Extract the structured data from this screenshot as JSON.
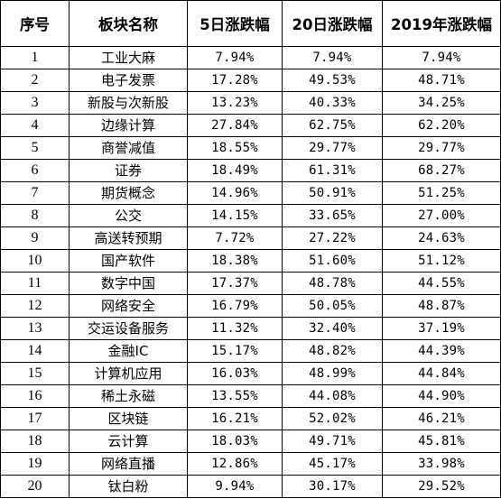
{
  "table": {
    "headers": [
      "序号",
      "板块名称",
      "5日涨跌幅",
      "20日涨跌幅",
      "2019年涨跌幅"
    ],
    "rows": [
      [
        "1",
        "工业大麻",
        "7.94%",
        "7.94%",
        "7.94%"
      ],
      [
        "2",
        "电子发票",
        "17.28%",
        "49.53%",
        "48.71%"
      ],
      [
        "3",
        "新股与次新股",
        "13.23%",
        "40.33%",
        "34.25%"
      ],
      [
        "4",
        "边缘计算",
        "27.84%",
        "62.75%",
        "62.20%"
      ],
      [
        "5",
        "商誉减值",
        "18.55%",
        "29.77%",
        "29.77%"
      ],
      [
        "6",
        "证券",
        "18.49%",
        "61.31%",
        "68.27%"
      ],
      [
        "7",
        "期货概念",
        "14.96%",
        "50.91%",
        "51.25%"
      ],
      [
        "8",
        "公交",
        "14.15%",
        "33.65%",
        "27.00%"
      ],
      [
        "9",
        "高送转预期",
        "7.72%",
        "27.22%",
        "24.63%"
      ],
      [
        "10",
        "国产软件",
        "18.38%",
        "51.60%",
        "51.12%"
      ],
      [
        "11",
        "数字中国",
        "17.37%",
        "48.78%",
        "44.55%"
      ],
      [
        "12",
        "网络安全",
        "16.79%",
        "50.05%",
        "48.87%"
      ],
      [
        "13",
        "交运设备服务",
        "11.32%",
        "32.40%",
        "37.19%"
      ],
      [
        "14",
        "金融IC",
        "15.17%",
        "48.82%",
        "44.39%"
      ],
      [
        "15",
        "计算机应用",
        "16.03%",
        "48.99%",
        "44.84%"
      ],
      [
        "16",
        "稀土永磁",
        "13.55%",
        "44.08%",
        "44.90%"
      ],
      [
        "17",
        "区块链",
        "16.21%",
        "52.02%",
        "46.21%"
      ],
      [
        "18",
        "云计算",
        "18.03%",
        "49.71%",
        "45.81%"
      ],
      [
        "19",
        "网络直播",
        "12.86%",
        "45.17%",
        "33.98%"
      ],
      [
        "20",
        "钛白粉",
        "9.94%",
        "30.17%",
        "29.52%"
      ]
    ]
  }
}
